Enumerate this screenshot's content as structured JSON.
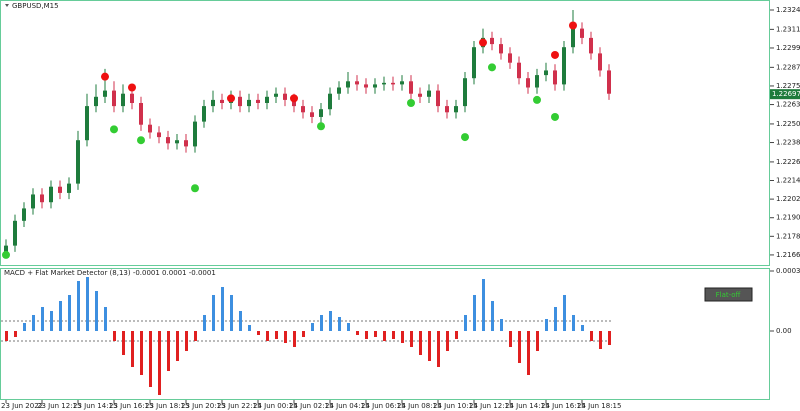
{
  "chart_data": [
    {
      "type": "candlestick",
      "title": "GBPUSD,M15",
      "categories": [
        "23 Jun 2022",
        null,
        null,
        null,
        "23 Jun 12:15",
        null,
        null,
        null,
        "23 Jun 14:15",
        null,
        null,
        null,
        "23 Jun 16:15",
        null,
        null,
        null,
        "23 Jun 18:15",
        null,
        null,
        null,
        "23 Jun 20:15",
        null,
        null,
        null,
        "23 Jun 22:15",
        null,
        null,
        null,
        "24 Jun 00:15",
        null,
        null,
        null,
        "24 Jun 02:15",
        null,
        null,
        null,
        "24 Jun 04:15",
        null,
        null,
        null,
        "24 Jun 06:15",
        null,
        null,
        null,
        "24 Jun 08:15",
        null,
        null,
        null,
        "24 Jun 10:15",
        null,
        null,
        null,
        "24 Jun 12:15",
        null,
        null,
        null,
        "24 Jun 14:15",
        null,
        null,
        null,
        "24 Jun 16:15",
        null,
        null,
        null,
        "24 Jun 18:15",
        null,
        null,
        null
      ],
      "open": [
        1.2168,
        1.2172,
        1.2188,
        1.2196,
        1.2205,
        1.22,
        1.221,
        1.2206,
        1.2212,
        1.224,
        1.2262,
        1.2268,
        1.2272,
        1.2262,
        1.227,
        1.2264,
        1.225,
        1.2245,
        1.2242,
        1.2238,
        1.224,
        1.2236,
        1.2252,
        1.2262,
        1.2266,
        1.2264,
        1.2268,
        1.2262,
        1.2266,
        1.2264,
        1.2268,
        1.227,
        1.2266,
        1.2262,
        1.2258,
        1.2255,
        1.226,
        1.227,
        1.2274,
        1.2278,
        1.2276,
        1.2274,
        1.2276,
        1.2277,
        1.2276,
        1.2278,
        1.227,
        1.2268,
        1.2272,
        1.2262,
        1.2258,
        1.2262,
        1.228,
        1.23,
        1.2306,
        1.2302,
        1.2296,
        1.229,
        1.228,
        1.2274,
        1.2282,
        1.2285,
        1.2276,
        1.23,
        1.2312,
        1.2306,
        1.2296,
        1.2285
      ],
      "high": [
        1.2176,
        1.2192,
        1.22,
        1.2209,
        1.2209,
        1.2214,
        1.2214,
        1.2216,
        1.2246,
        1.227,
        1.2276,
        1.2286,
        1.2278,
        1.2276,
        1.2274,
        1.2268,
        1.2254,
        1.2249,
        1.2246,
        1.2244,
        1.2244,
        1.2256,
        1.2266,
        1.2272,
        1.227,
        1.2272,
        1.2272,
        1.227,
        1.227,
        1.2272,
        1.2274,
        1.2274,
        1.227,
        1.2266,
        1.2262,
        1.2264,
        1.2274,
        1.2278,
        1.2284,
        1.2282,
        1.228,
        1.228,
        1.2281,
        1.2281,
        1.2282,
        1.2282,
        1.2274,
        1.2276,
        1.2276,
        1.2266,
        1.2266,
        1.2284,
        1.2304,
        1.2312,
        1.231,
        1.2306,
        1.23,
        1.2294,
        1.2284,
        1.2286,
        1.229,
        1.2289,
        1.2304,
        1.2324,
        1.2316,
        1.231,
        1.23,
        1.2289
      ],
      "low": [
        1.2164,
        1.2168,
        1.2184,
        1.2192,
        1.2196,
        1.2196,
        1.2202,
        1.2202,
        1.2208,
        1.2236,
        1.2258,
        1.2264,
        1.2258,
        1.2258,
        1.226,
        1.2246,
        1.2241,
        1.2238,
        1.2234,
        1.2234,
        1.2232,
        1.2232,
        1.2248,
        1.2258,
        1.226,
        1.226,
        1.2258,
        1.2258,
        1.226,
        1.226,
        1.2264,
        1.2262,
        1.2258,
        1.2254,
        1.2251,
        1.2251,
        1.2256,
        1.2266,
        1.227,
        1.2272,
        1.227,
        1.227,
        1.2272,
        1.2272,
        1.2272,
        1.2266,
        1.2264,
        1.2264,
        1.2258,
        1.2254,
        1.2254,
        1.2258,
        1.2276,
        1.2296,
        1.2298,
        1.2292,
        1.2286,
        1.2276,
        1.227,
        1.227,
        1.2278,
        1.2272,
        1.2272,
        1.2296,
        1.2302,
        1.2292,
        1.2281,
        1.2266
      ],
      "close": [
        1.2172,
        1.2188,
        1.2196,
        1.2205,
        1.22,
        1.221,
        1.2206,
        1.2212,
        1.224,
        1.2262,
        1.2268,
        1.2272,
        1.2262,
        1.227,
        1.2264,
        1.225,
        1.2245,
        1.2242,
        1.2238,
        1.224,
        1.2236,
        1.2252,
        1.2262,
        1.2266,
        1.2264,
        1.2268,
        1.2262,
        1.2266,
        1.2264,
        1.2268,
        1.227,
        1.2266,
        1.2262,
        1.2258,
        1.2255,
        1.226,
        1.227,
        1.2274,
        1.2278,
        1.2276,
        1.2274,
        1.2276,
        1.2277,
        1.2276,
        1.2278,
        1.227,
        1.2268,
        1.2272,
        1.2262,
        1.2258,
        1.2262,
        1.228,
        1.23,
        1.2306,
        1.2302,
        1.2296,
        1.229,
        1.228,
        1.2274,
        1.2282,
        1.2285,
        1.2276,
        1.23,
        1.2312,
        1.2306,
        1.2296,
        1.2285,
        1.227
      ],
      "up_color": "#1e7b3c",
      "down_color": "#d0304c",
      "sell_dots": {
        "color": "#ee1111",
        "x": [
          11,
          14,
          25,
          32,
          53,
          61,
          63
        ],
        "values": [
          1.2281,
          1.2274,
          1.2267,
          1.2267,
          1.2303,
          1.2295,
          1.2314
        ]
      },
      "buy_dots": {
        "color": "#33cc33",
        "x": [
          0,
          12,
          15,
          21,
          35,
          45,
          51,
          54,
          59,
          61
        ],
        "values": [
          1.2166,
          1.2247,
          1.224,
          1.2209,
          1.2249,
          1.2264,
          1.2242,
          1.2287,
          1.2266,
          1.2255
        ]
      },
      "current_price": {
        "value": 1.22697,
        "label": "1.22697"
      },
      "ylim": [
        1.21595,
        1.23298
      ],
      "yticks": [
        {
          "value": 1.2324,
          "label": "1.23240"
        },
        {
          "value": 1.23115,
          "label": "1.23115"
        },
        {
          "value": 1.22995,
          "label": "1.22995"
        },
        {
          "value": 1.2287,
          "label": "1.22870"
        },
        {
          "value": 1.2275,
          "label": "1.22750"
        },
        {
          "value": 1.2263,
          "label": "1.22630"
        },
        {
          "value": 1.22505,
          "label": "1.22505"
        },
        {
          "value": 1.22385,
          "label": "1.22385"
        },
        {
          "value": 1.2226,
          "label": "1.22260"
        },
        {
          "value": 1.2214,
          "label": "1.22140"
        },
        {
          "value": 1.2202,
          "label": "1.22020"
        },
        {
          "value": 1.219,
          "label": "1.21900"
        },
        {
          "value": 1.2178,
          "label": "1.21780"
        },
        {
          "value": 1.2166,
          "label": "1.21660"
        }
      ]
    },
    {
      "type": "histogram",
      "title": "MACD + Flat Market Detector (8,13) -0.0001 0.0001 -0.0001",
      "button": "Flat-off",
      "values": [
        -5e-05,
        -3e-05,
        4e-05,
        8e-05,
        0.00012,
        0.0001,
        0.00015,
        0.00018,
        0.00025,
        0.00027,
        0.0002,
        0.00012,
        -5e-05,
        -0.00012,
        -0.00018,
        -0.00022,
        -0.00028,
        -0.00032,
        -0.0002,
        -0.00015,
        -0.0001,
        -5e-05,
        8e-05,
        0.00018,
        0.00022,
        0.00018,
        0.0001,
        3e-05,
        -2e-05,
        -5e-05,
        -4e-05,
        -6e-05,
        -8e-05,
        -3e-05,
        4e-05,
        8e-05,
        0.0001,
        7e-05,
        4e-05,
        -2e-05,
        -4e-05,
        -3e-05,
        -5e-05,
        -4e-05,
        -6e-05,
        -8e-05,
        -0.00012,
        -0.00015,
        -0.00018,
        -0.0001,
        -4e-05,
        8e-05,
        0.00018,
        0.00026,
        0.00015,
        6e-05,
        -8e-05,
        -0.00016,
        -0.00022,
        -0.0001,
        6e-05,
        0.00012,
        0.00018,
        8e-05,
        3e-05,
        -5e-05,
        -9e-05,
        -7e-05
      ],
      "up_color": "#3d8fe0",
      "down_color": "#e02020",
      "levels": [
        5e-05,
        -5e-05
      ],
      "ylim": [
        -0.00034,
        0.00031
      ],
      "yticks": [
        0.0003,
        {
          "value": 0,
          "label": "0.00"
        }
      ]
    }
  ]
}
